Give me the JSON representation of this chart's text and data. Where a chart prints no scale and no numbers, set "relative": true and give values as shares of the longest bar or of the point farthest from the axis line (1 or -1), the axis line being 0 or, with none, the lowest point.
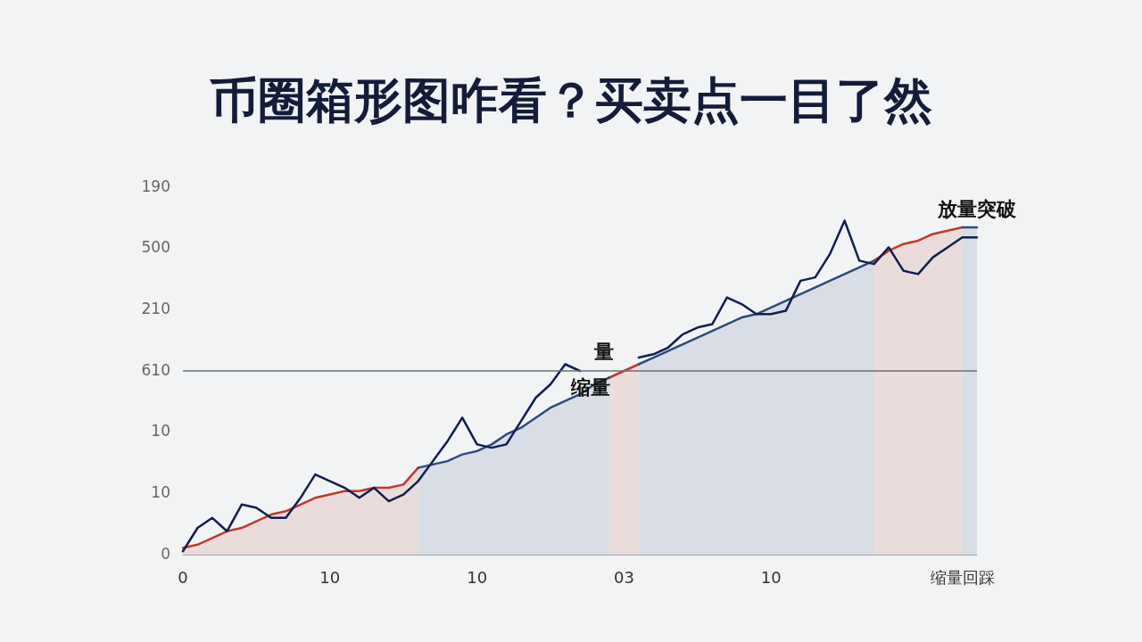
{
  "chart_data": {
    "type": "line",
    "title": "币圈箱形图咋看？买卖点一目了然",
    "relative": true,
    "categories": [
      "0",
      null,
      null,
      null,
      null,
      null,
      null,
      null,
      null,
      null,
      "10",
      null,
      null,
      null,
      null,
      null,
      null,
      null,
      null,
      null,
      "10",
      null,
      null,
      null,
      null,
      null,
      null,
      null,
      null,
      null,
      "03",
      null,
      null,
      null,
      null,
      null,
      null,
      null,
      null,
      null,
      "10",
      null,
      null,
      null,
      null,
      null,
      null,
      null,
      null,
      null,
      null,
      null,
      null,
      "缩量回踩",
      null
    ],
    "marker": "none",
    "line_style": "solid",
    "series": [
      {
        "type": "area",
        "color": "#c0392b",
        "values": [
          0.02,
          0.03,
          0.05,
          0.07,
          0.08,
          0.1,
          0.12,
          0.13,
          0.15,
          0.17,
          0.18,
          0.19,
          0.19,
          0.2,
          0.2,
          0.21,
          0.26,
          null,
          null,
          null,
          null,
          null,
          null,
          null,
          null,
          null,
          null,
          null,
          null,
          0.53,
          0.55,
          0.57,
          null,
          null,
          null,
          null,
          null,
          null,
          null,
          null,
          null,
          null,
          null,
          null,
          null,
          null,
          null,
          0.88,
          0.91,
          0.93,
          0.94,
          0.96,
          0.97,
          0.98,
          null
        ]
      },
      {
        "type": "area",
        "color": "#2c4a7c",
        "values": [
          null,
          null,
          null,
          null,
          null,
          null,
          null,
          null,
          null,
          null,
          null,
          null,
          null,
          null,
          null,
          null,
          0.26,
          0.27,
          0.28,
          0.3,
          0.31,
          0.33,
          0.36,
          0.38,
          0.41,
          0.44,
          0.46,
          0.48,
          0.51,
          0.53,
          null,
          0.57,
          0.59,
          0.61,
          0.63,
          0.65,
          0.67,
          0.69,
          0.71,
          0.72,
          0.74,
          0.76,
          0.78,
          0.8,
          0.82,
          0.84,
          0.86,
          0.88,
          null,
          null,
          null,
          null,
          null,
          0.98,
          0.98
        ]
      },
      {
        "color": "#0f1f4f",
        "values": [
          0.01,
          0.08,
          0.11,
          0.07,
          0.15,
          0.14,
          0.11,
          0.11,
          0.17,
          0.24,
          0.22,
          0.2,
          0.17,
          0.2,
          0.16,
          0.18,
          0.22,
          0.28,
          0.34,
          0.41,
          0.33,
          0.32,
          0.33,
          0.4,
          0.47,
          0.51,
          0.57,
          0.55,
          null,
          null,
          null,
          0.59,
          0.6,
          0.62,
          0.66,
          0.68,
          0.69,
          0.77,
          0.75,
          0.72,
          0.72,
          0.73,
          0.82,
          0.83,
          0.9,
          1,
          0.88,
          0.87,
          0.92,
          0.85,
          0.84,
          0.89,
          0.92,
          0.95,
          0.95
        ]
      }
    ],
    "ref_lines": [
      {
        "axis": "y",
        "value": 0.55,
        "color": "#6b6f78"
      }
    ],
    "annotations": [
      {
        "text": "放量突破",
        "y": 0.98
      },
      {
        "text": "量",
        "x": "03",
        "y": 0.55
      },
      {
        "text": "缩量",
        "x": "03",
        "y": 0.55
      },
      "190",
      "500",
      "210",
      "610",
      "10",
      "10",
      "0"
    ]
  }
}
